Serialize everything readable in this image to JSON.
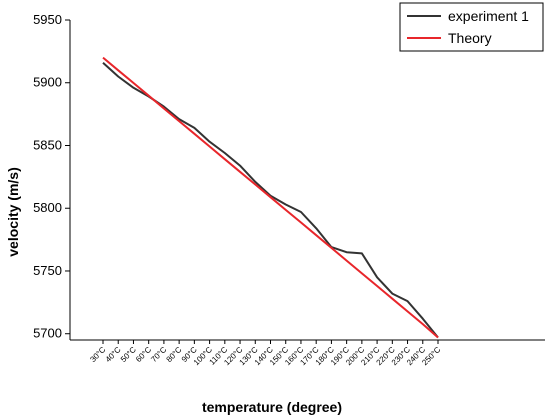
{
  "chart_data": {
    "type": "line",
    "title": "",
    "xlabel": "temperature (degree)",
    "ylabel": "velocity (m/s)",
    "ylim": [
      5695,
      5950
    ],
    "yticks": [
      5700,
      5750,
      5800,
      5850,
      5900,
      5950
    ],
    "categories": [
      "30°C",
      "40°C",
      "50°C",
      "60°C",
      "70°C",
      "80°C",
      "90°C",
      "100°C",
      "110°C",
      "120°C",
      "130°C",
      "140°C",
      "150°C",
      "160°C",
      "170°C",
      "180°C",
      "190°C",
      "200°C",
      "210°C",
      "220°C",
      "230°C",
      "240°C",
      "250°C"
    ],
    "legend_position": "top-right",
    "grid": false,
    "series": [
      {
        "name": "experiment 1",
        "color": "#333333",
        "values": [
          5916,
          5905,
          5896,
          5889,
          5881,
          5871,
          5864,
          5853,
          5844,
          5834,
          5821,
          5810,
          5803,
          5797,
          5784,
          5769,
          5765,
          5764,
          5745,
          5732,
          5726,
          5712,
          5697
        ]
      },
      {
        "name": "Theory",
        "color": "#e8262b",
        "values": [
          5920,
          5909.9,
          5899.8,
          5889.7,
          5879.5,
          5869.4,
          5859.3,
          5849.2,
          5839.1,
          5829,
          5818.9,
          5808.8,
          5798.7,
          5788.6,
          5778.5,
          5768.4,
          5758.3,
          5748.1,
          5738,
          5727.9,
          5717.8,
          5707.7,
          5697
        ]
      }
    ]
  }
}
